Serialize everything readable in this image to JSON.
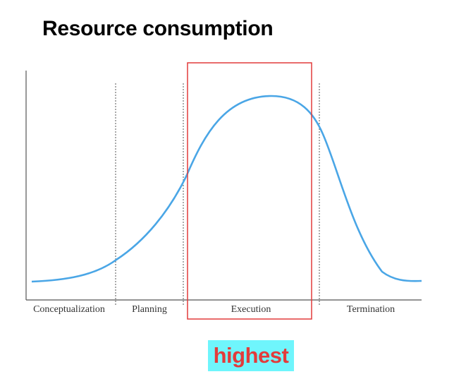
{
  "title": "Resource consumption",
  "phases": [
    "Conceptualization",
    "Planning",
    "Execution",
    "Termination"
  ],
  "highlight": {
    "text": "highest",
    "text_color": "#e23b3b",
    "background_color": "#6ff5fc"
  },
  "colors": {
    "curve": "#4aa6e6",
    "box": "#e23b3b",
    "axis": "#555555",
    "divider": "#555555"
  }
}
